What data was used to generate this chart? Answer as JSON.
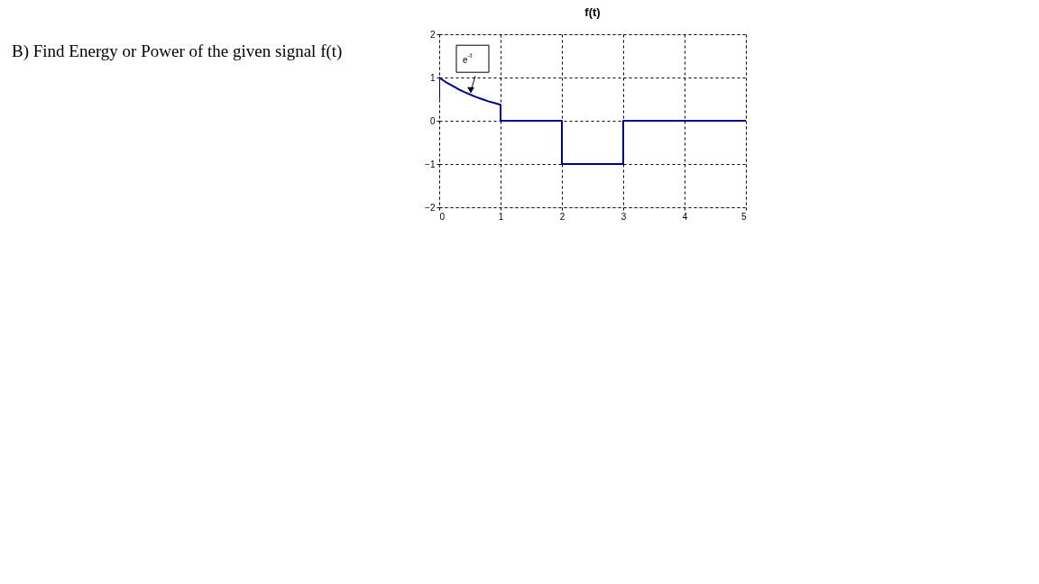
{
  "chart_data": {
    "type": "line",
    "title": "f(t)",
    "x": [
      0,
      0,
      0.1,
      0.2,
      0.3,
      0.4,
      0.5,
      0.6,
      0.7,
      0.8,
      0.9,
      1,
      1,
      2,
      2,
      3,
      3,
      5
    ],
    "series": [
      {
        "color": "#00008b",
        "values": [
          0.5,
          1,
          0.9,
          0.82,
          0.74,
          0.67,
          0.61,
          0.55,
          0.5,
          0.45,
          0.41,
          0.37,
          0,
          0,
          -1,
          -1,
          0,
          0
        ]
      }
    ],
    "xlim": [
      0,
      5
    ],
    "ylim": [
      -2,
      2
    ],
    "xticks": [
      0,
      1,
      2,
      3,
      4,
      5
    ],
    "yticks": [
      -2,
      -1,
      0,
      1,
      2
    ],
    "grid": true,
    "line_style": "solid",
    "annotations": [
      "B) Find Energy or Power of the given signal f(t)",
      {
        "text": "e$^{-t}$",
        "x": 0.5,
        "y": 0.6
      }
    ]
  }
}
